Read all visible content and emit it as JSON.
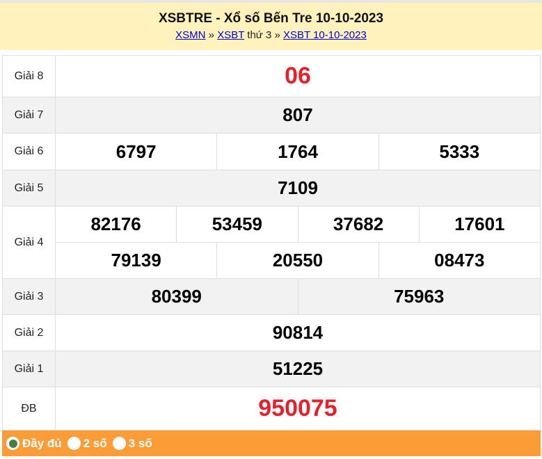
{
  "header": {
    "title": "XSBTRE - Xổ số Bến Tre 10-10-2023",
    "breadcrumb": {
      "link1": "XSMN",
      "sep1": " » ",
      "link2": "XSBT",
      "text": " thứ 3 » ",
      "link3": "XSBT 10-10-2023"
    }
  },
  "prizes": [
    {
      "label": "Giải 8",
      "lines": [
        [
          "06"
        ]
      ],
      "highlight": true
    },
    {
      "label": "Giải 7",
      "lines": [
        [
          "807"
        ]
      ]
    },
    {
      "label": "Giải 6",
      "lines": [
        [
          "6797",
          "1764",
          "5333"
        ]
      ]
    },
    {
      "label": "Giải 5",
      "lines": [
        [
          "7109"
        ]
      ]
    },
    {
      "label": "Giải 4",
      "lines": [
        [
          "82176",
          "53459",
          "37682",
          "17601"
        ],
        [
          "79139",
          "20550",
          "08473"
        ]
      ]
    },
    {
      "label": "Giải 3",
      "lines": [
        [
          "80399",
          "75963"
        ]
      ]
    },
    {
      "label": "Giải 2",
      "lines": [
        [
          "90814"
        ]
      ]
    },
    {
      "label": "Giải 1",
      "lines": [
        [
          "51225"
        ]
      ]
    },
    {
      "label": "ĐB",
      "lines": [
        [
          "950075"
        ]
      ],
      "highlight": true
    }
  ],
  "footer": {
    "options": [
      {
        "label": "Đầy đủ",
        "selected": true
      },
      {
        "label": "2 số",
        "selected": false
      },
      {
        "label": "3 số",
        "selected": false
      }
    ]
  },
  "colors": {
    "highlight": "#e8202a",
    "footer": "#fb9c36",
    "header": "#fff2bd"
  }
}
